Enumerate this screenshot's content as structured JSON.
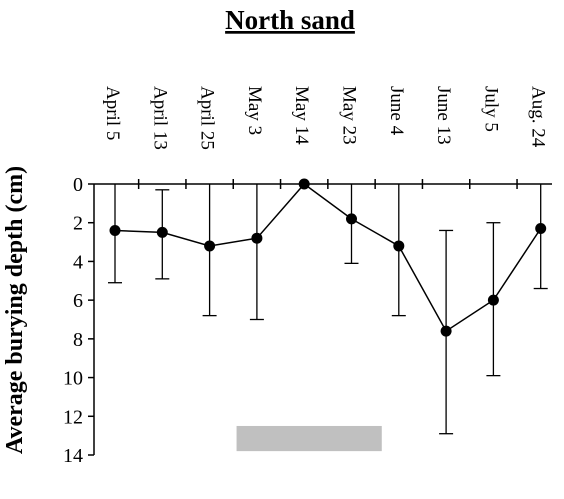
{
  "chart_data": {
    "type": "line",
    "title": "North sand",
    "ylabel": "Average burying depth (cm)",
    "xlabel": "",
    "categories": [
      "April 5",
      "April 13",
      "April 25",
      "May 3",
      "May 14",
      "May 23",
      "June 4",
      "June 13",
      "July 5",
      "Aug. 24"
    ],
    "y_ticks": [
      "0",
      "2",
      "4",
      "6",
      "8",
      "10",
      "12",
      "14"
    ],
    "ylim": [
      0,
      14
    ],
    "y_inverted": true,
    "series": [
      {
        "values": [
          2.4,
          2.5,
          3.2,
          2.8,
          0.0,
          1.8,
          3.2,
          7.6,
          6.0,
          2.3
        ],
        "error_upper": [
          0.0,
          0.3,
          0.0,
          0.0,
          0.0,
          0.0,
          0.0,
          2.4,
          2.0,
          0.0
        ],
        "error_lower": [
          5.1,
          4.9,
          6.8,
          7.0,
          0.0,
          4.1,
          6.8,
          12.9,
          9.9,
          5.4
        ]
      }
    ],
    "shaded_bar": {
      "x_start_index": 2.57,
      "x_end_index": 5.64,
      "y_from": 12.5,
      "y_to": 13.8,
      "color": "#c0c0c0"
    },
    "line_color": "#000000",
    "marker_color": "#000000",
    "grid": false,
    "legend": "none"
  }
}
